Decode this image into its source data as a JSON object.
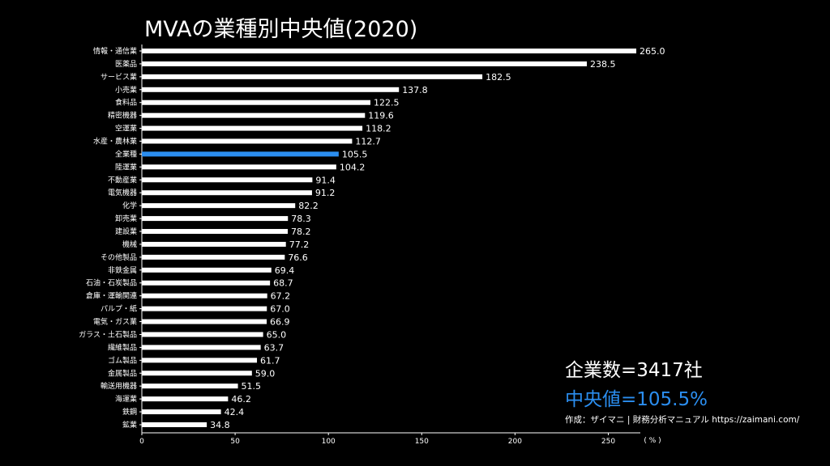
{
  "title": "MVAの業種別中央値(2020)",
  "stats": {
    "company_count": "企業数=3417社",
    "median": "中央値=105.5%"
  },
  "credit": "作成：ザイマニ | 財務分析マニュアル https://zaimani.com/",
  "colors": {
    "background": "#000000",
    "bar": "#ffffff",
    "highlight": "#2b8ef0",
    "text": "#ffffff"
  },
  "chart_data": {
    "type": "bar",
    "orientation": "horizontal",
    "categories": [
      "情報・通信業",
      "医薬品",
      "サービス業",
      "小売業",
      "食料品",
      "精密機器",
      "空運業",
      "水産・農林業",
      "全業種",
      "陸運業",
      "不動産業",
      "電気機器",
      "化学",
      "卸売業",
      "建設業",
      "機械",
      "その他製品",
      "非鉄金属",
      "石油・石炭製品",
      "倉庫・運輸関連",
      "パルプ・紙",
      "電気・ガス業",
      "ガラス・土石製品",
      "繊維製品",
      "ゴム製品",
      "金属製品",
      "輸送用機器",
      "海運業",
      "鉄鋼",
      "鉱業"
    ],
    "values": [
      265.0,
      238.5,
      182.5,
      137.8,
      122.5,
      119.6,
      118.2,
      112.7,
      105.5,
      104.2,
      91.4,
      91.2,
      82.2,
      78.3,
      78.2,
      77.2,
      76.6,
      69.4,
      68.7,
      67.2,
      67.0,
      66.9,
      65.0,
      63.7,
      61.7,
      59.0,
      51.5,
      46.2,
      42.4,
      34.8
    ],
    "value_labels": [
      "265.0",
      "238.5",
      "182.5",
      "137.8",
      "122.5",
      "119.6",
      "118.2",
      "112.7",
      "105.5",
      "104.2",
      "91.4",
      "91.2",
      "82.2",
      "78.3",
      "78.2",
      "77.2",
      "76.6",
      "69.4",
      "68.7",
      "67.2",
      "67.0",
      "66.9",
      "65.0",
      "63.7",
      "61.7",
      "59.0",
      "51.5",
      "46.2",
      "42.4",
      "34.8"
    ],
    "highlight_category": "全業種",
    "xticks": [
      0,
      50,
      100,
      150,
      200,
      250
    ],
    "xlim": [
      0,
      265
    ],
    "unit": "( % )",
    "grid": false,
    "legend": false
  }
}
